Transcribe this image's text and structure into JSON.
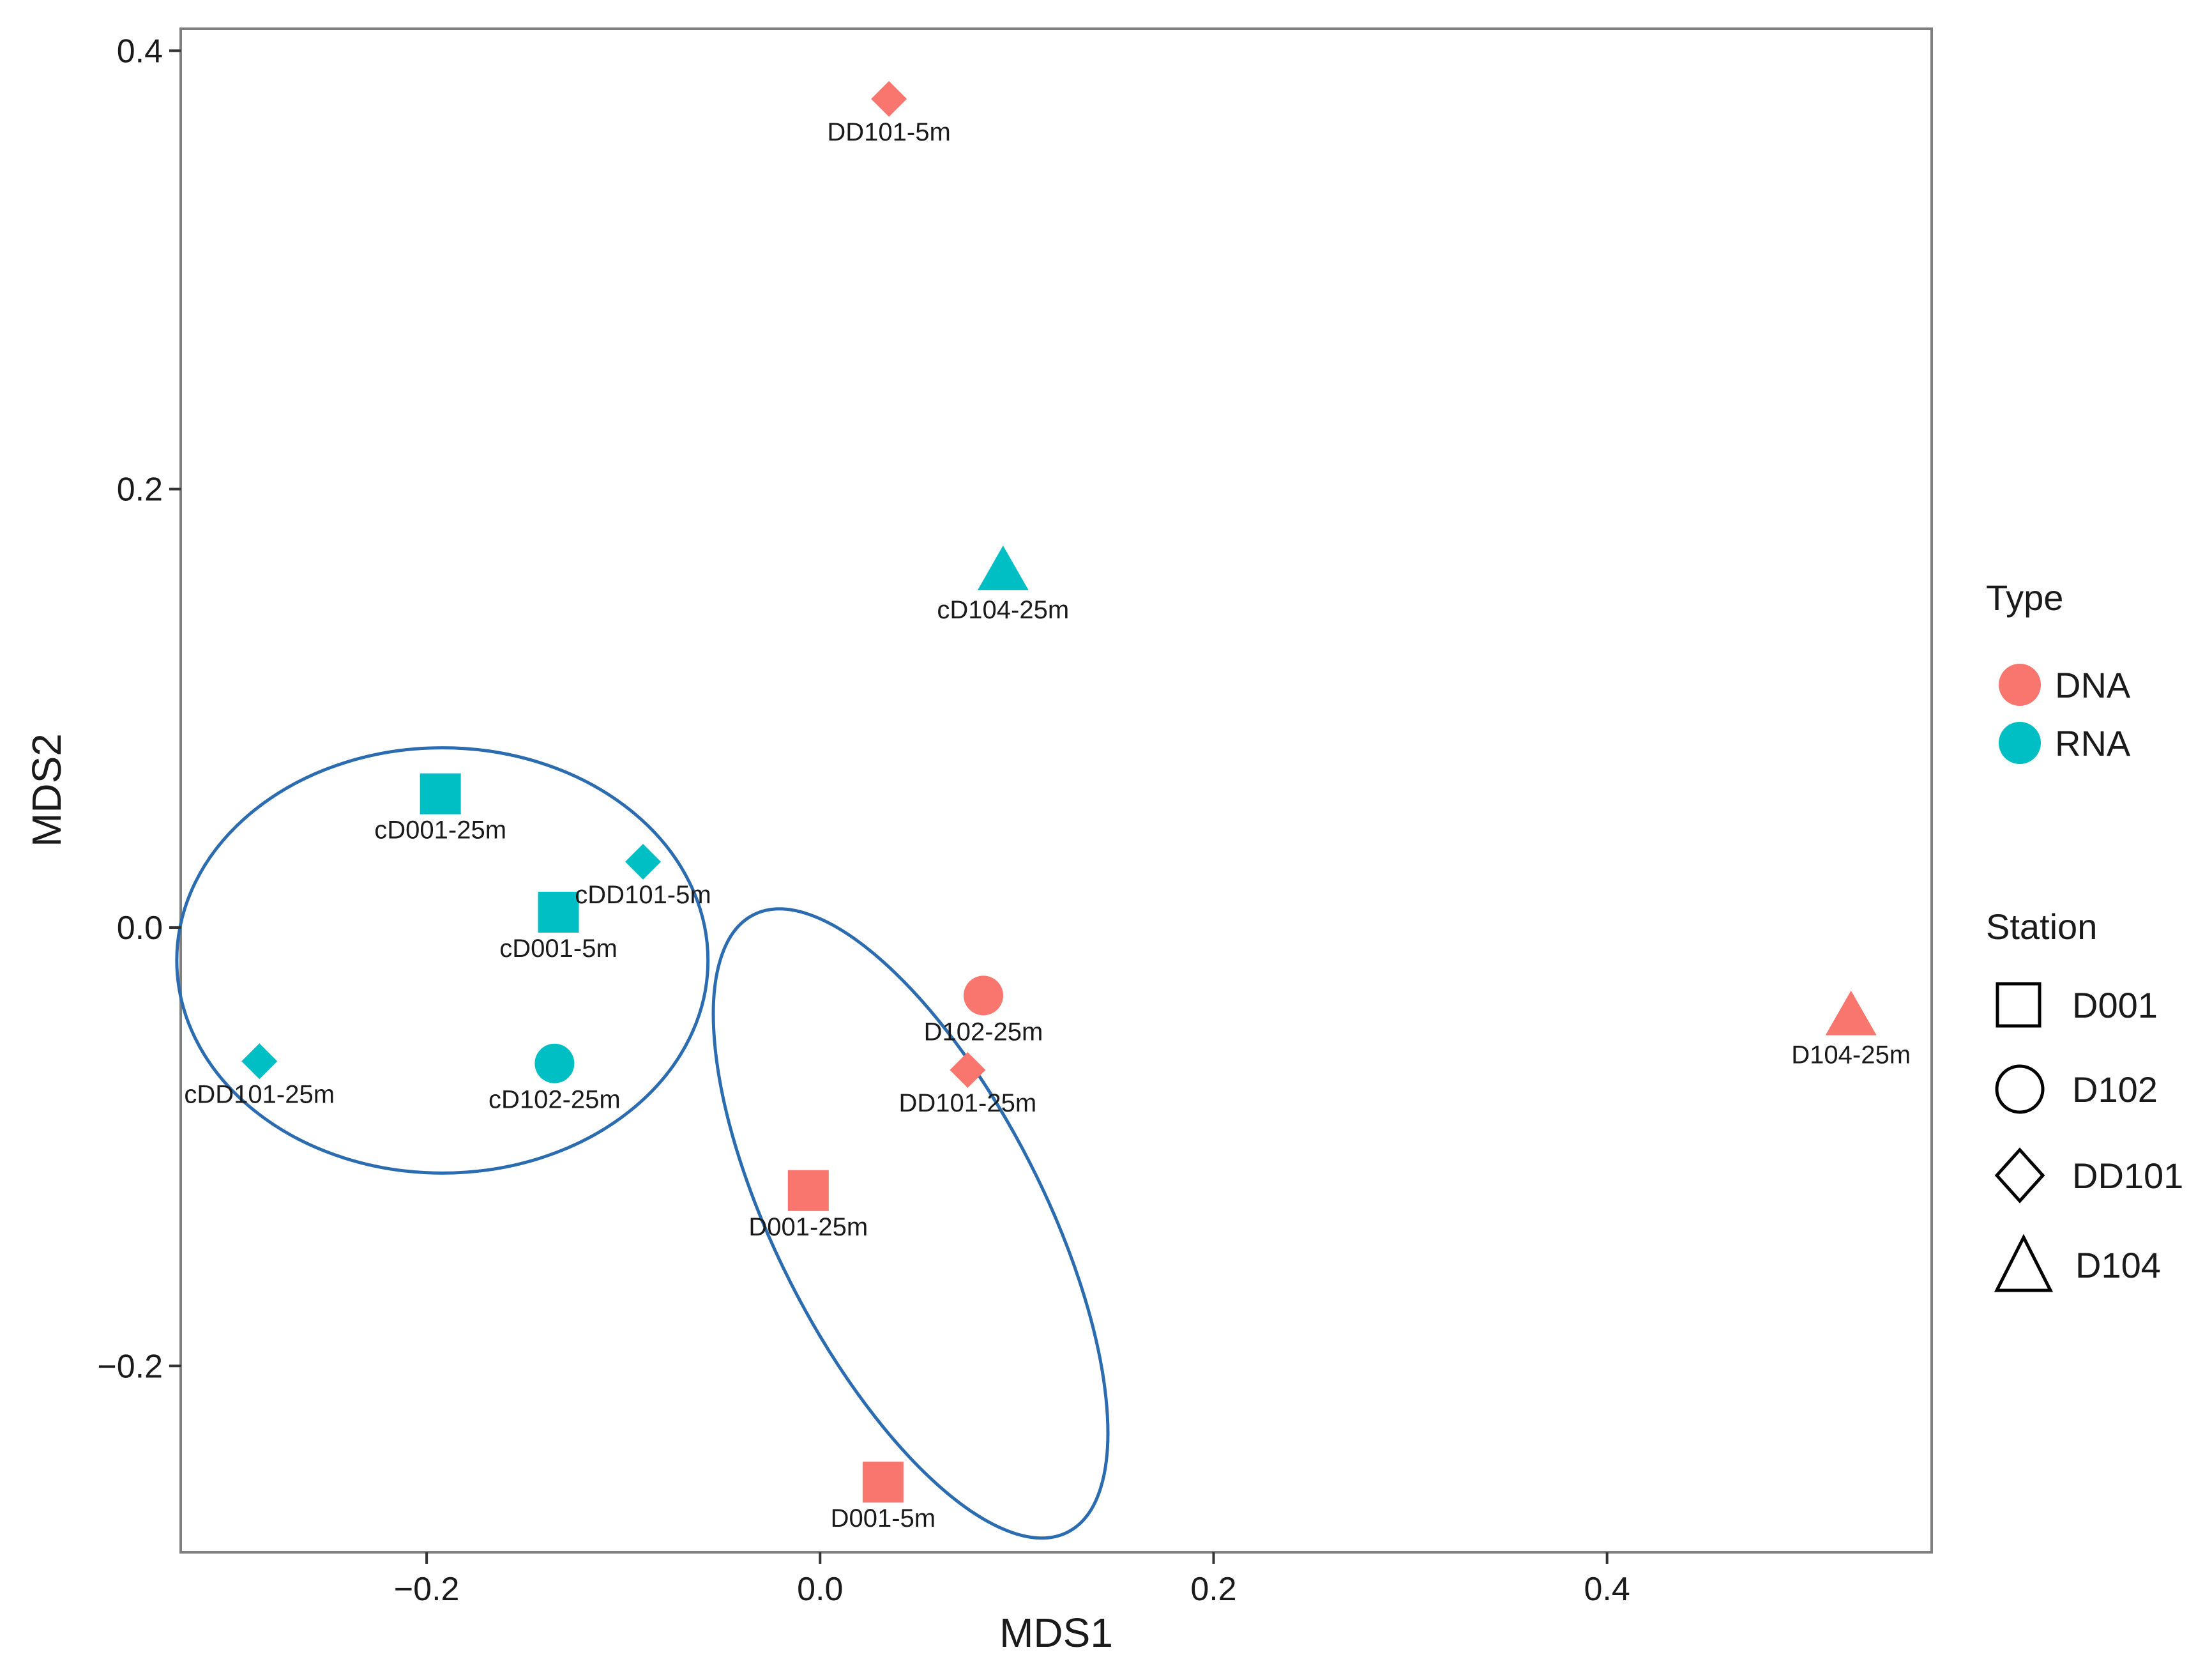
{
  "chart_data": {
    "type": "scatter",
    "title": "",
    "xlabel": "MDS1",
    "ylabel": "MDS2",
    "xlim": [
      -0.325,
      0.565
    ],
    "ylim": [
      -0.285,
      0.41
    ],
    "grid": false,
    "x_ticks": [
      -0.2,
      0.0,
      0.2,
      0.4
    ],
    "x_tick_labels": [
      "−0.2",
      "0.0",
      "0.2",
      "0.4"
    ],
    "y_ticks": [
      -0.2,
      0.0,
      0.2,
      0.4
    ],
    "y_tick_labels": [
      "−0.2",
      "0.0",
      "0.2",
      "0.4"
    ],
    "legend_placement": "right",
    "colors": {
      "DNA": "#f8766d",
      "RNA": "#00bfc4",
      "ellipse": "#2b6cb0"
    },
    "legend": {
      "type_title": "Type",
      "type_entries": [
        "DNA",
        "RNA"
      ],
      "station_title": "Station",
      "station_entries": [
        {
          "label": "D001",
          "shape": "square"
        },
        {
          "label": "D102",
          "shape": "circle"
        },
        {
          "label": "DD101",
          "shape": "diamond"
        },
        {
          "label": "D104",
          "shape": "triangle"
        }
      ]
    },
    "points": [
      {
        "label": "DD101-5m",
        "x": 0.035,
        "y": 0.378,
        "type": "DNA",
        "station": "DD101"
      },
      {
        "label": "cD104-25m",
        "x": 0.093,
        "y": 0.162,
        "type": "RNA",
        "station": "D104"
      },
      {
        "label": "cD001-25m",
        "x": -0.193,
        "y": 0.061,
        "type": "RNA",
        "station": "D001"
      },
      {
        "label": "cDD101-5m",
        "x": -0.09,
        "y": 0.03,
        "type": "RNA",
        "station": "DD101"
      },
      {
        "label": "cD001-5m",
        "x": -0.133,
        "y": 0.007,
        "type": "RNA",
        "station": "D001"
      },
      {
        "label": "cDD101-25m",
        "x": -0.285,
        "y": -0.061,
        "type": "RNA",
        "station": "DD101"
      },
      {
        "label": "cD102-25m",
        "x": -0.135,
        "y": -0.062,
        "type": "RNA",
        "station": "D102"
      },
      {
        "label": "D102-25m",
        "x": 0.083,
        "y": -0.031,
        "type": "DNA",
        "station": "D102"
      },
      {
        "label": "DD101-25m",
        "x": 0.075,
        "y": -0.065,
        "type": "DNA",
        "station": "DD101"
      },
      {
        "label": "D001-25m",
        "x": -0.006,
        "y": -0.12,
        "type": "DNA",
        "station": "D001"
      },
      {
        "label": "D001-5m",
        "x": 0.032,
        "y": -0.253,
        "type": "DNA",
        "station": "D001"
      },
      {
        "label": "D104-25m",
        "x": 0.524,
        "y": -0.041,
        "type": "DNA",
        "station": "D104"
      }
    ],
    "ellipses": [
      {
        "group": "RNA",
        "cx": -0.192,
        "cy": -0.015,
        "rx": 0.135,
        "ry": 0.097,
        "angle_deg": 0
      },
      {
        "group": "DNA",
        "cx": 0.046,
        "cy": -0.135,
        "rx": 0.068,
        "ry": 0.158,
        "angle_deg": -27
      }
    ]
  }
}
